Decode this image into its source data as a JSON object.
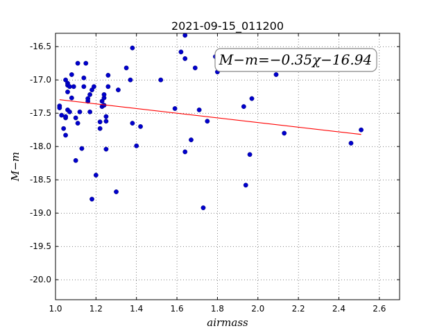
{
  "chart_data": {
    "type": "scatter",
    "title": "2021-09-15_011200",
    "xlabel": "airmass",
    "ylabel": "M−m",
    "xlim": [
      1.0,
      2.7
    ],
    "ylim": [
      -20.3,
      -16.3
    ],
    "xticks": [
      "1.0",
      "1.2",
      "1.4",
      "1.6",
      "1.8",
      "2.0",
      "2.2",
      "2.4",
      "2.6"
    ],
    "yticks": [
      "-16.5",
      "-17.0",
      "-17.5",
      "-18.0",
      "-18.5",
      "-19.0",
      "-19.5",
      "-20.0"
    ],
    "xtick_values": [
      1.0,
      1.2,
      1.4,
      1.6,
      1.8,
      2.0,
      2.2,
      2.4,
      2.6
    ],
    "ytick_values": [
      -16.5,
      -17.0,
      -17.5,
      -18.0,
      -18.5,
      -19.0,
      -19.5,
      -20.0
    ],
    "grid": true,
    "annotation": "M−m=−0.35χ−16.94",
    "marker_color": "#0000cc",
    "fit_color": "#ff0000",
    "fit": {
      "slope": -0.35,
      "intercept": -16.94,
      "x_range": [
        1.02,
        2.51
      ]
    },
    "points": [
      [
        1.02,
        -17.39
      ],
      [
        1.02,
        -17.42
      ],
      [
        1.03,
        -17.53
      ],
      [
        1.04,
        -17.73
      ],
      [
        1.05,
        -17.83
      ],
      [
        1.05,
        -17.57
      ],
      [
        1.05,
        -17.55
      ],
      [
        1.05,
        -17.0
      ],
      [
        1.06,
        -17.05
      ],
      [
        1.06,
        -17.18
      ],
      [
        1.06,
        -17.08
      ],
      [
        1.06,
        -17.45
      ],
      [
        1.07,
        -17.48
      ],
      [
        1.07,
        -17.1
      ],
      [
        1.08,
        -16.92
      ],
      [
        1.08,
        -17.27
      ],
      [
        1.09,
        -17.1
      ],
      [
        1.1,
        -18.21
      ],
      [
        1.1,
        -17.57
      ],
      [
        1.11,
        -16.75
      ],
      [
        1.11,
        -17.65
      ],
      [
        1.12,
        -17.48
      ],
      [
        1.13,
        -18.03
      ],
      [
        1.14,
        -17.1
      ],
      [
        1.14,
        -16.97
      ],
      [
        1.15,
        -16.75
      ],
      [
        1.16,
        -17.32
      ],
      [
        1.16,
        -17.28
      ],
      [
        1.17,
        -17.22
      ],
      [
        1.17,
        -17.48
      ],
      [
        1.18,
        -17.15
      ],
      [
        1.18,
        -18.79
      ],
      [
        1.19,
        -17.1
      ],
      [
        1.2,
        -18.43
      ],
      [
        1.22,
        -17.63
      ],
      [
        1.22,
        -17.73
      ],
      [
        1.23,
        -17.4
      ],
      [
        1.23,
        -17.32
      ],
      [
        1.24,
        -17.38
      ],
      [
        1.24,
        -17.27
      ],
      [
        1.24,
        -17.22
      ],
      [
        1.25,
        -17.55
      ],
      [
        1.25,
        -17.62
      ],
      [
        1.25,
        -18.04
      ],
      [
        1.26,
        -17.1
      ],
      [
        1.26,
        -16.93
      ],
      [
        1.3,
        -18.68
      ],
      [
        1.31,
        -17.15
      ],
      [
        1.35,
        -16.82
      ],
      [
        1.37,
        -17.0
      ],
      [
        1.38,
        -16.52
      ],
      [
        1.38,
        -17.65
      ],
      [
        1.4,
        -17.99
      ],
      [
        1.42,
        -17.7
      ],
      [
        1.52,
        -17.0
      ],
      [
        1.59,
        -17.43
      ],
      [
        1.62,
        -16.58
      ],
      [
        1.64,
        -16.33
      ],
      [
        1.64,
        -18.08
      ],
      [
        1.64,
        -16.68
      ],
      [
        1.67,
        -17.9
      ],
      [
        1.69,
        -16.82
      ],
      [
        1.71,
        -17.45
      ],
      [
        1.73,
        -18.92
      ],
      [
        1.75,
        -17.62
      ],
      [
        1.79,
        -16.65
      ],
      [
        1.8,
        -16.88
      ],
      [
        1.93,
        -17.4
      ],
      [
        1.94,
        -18.58
      ],
      [
        1.96,
        -18.12
      ],
      [
        1.97,
        -17.28
      ],
      [
        2.09,
        -16.92
      ],
      [
        2.13,
        -17.8
      ],
      [
        2.46,
        -17.95
      ],
      [
        2.51,
        -17.75
      ]
    ]
  }
}
